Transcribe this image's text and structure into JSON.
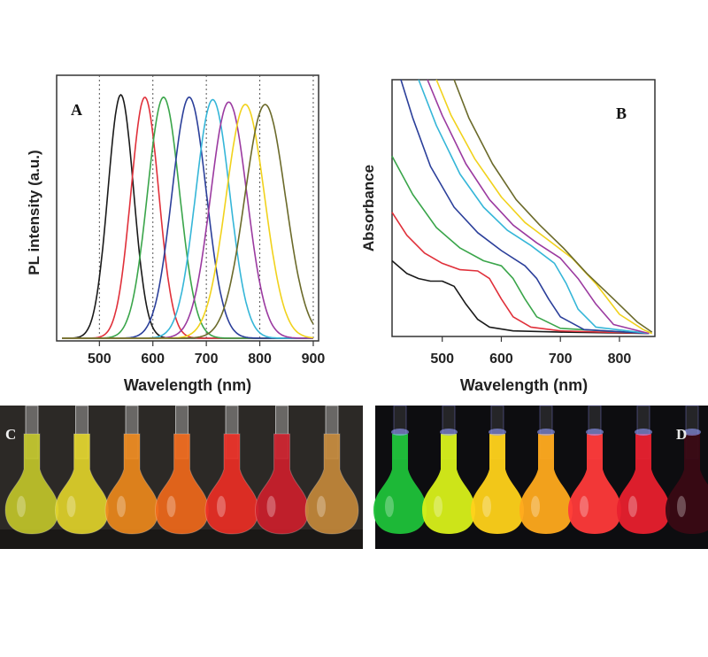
{
  "chart_data": [
    {
      "panel": "A",
      "type": "line",
      "xlabel": "Wavelength (nm)",
      "ylabel": "PL intensity (a.u.)",
      "xlim": [
        420,
        910
      ],
      "ylim": [
        0,
        1.08
      ],
      "xticks": [
        500,
        600,
        700,
        800,
        900
      ],
      "grid": "vertical dotted at ticks",
      "series": [
        {
          "color": "#1a1a1a",
          "peak": 540,
          "width": 24,
          "height": 1.0
        },
        {
          "color": "#e0303a",
          "peak": 585,
          "width": 26,
          "height": 0.99
        },
        {
          "color": "#3aa54a",
          "peak": 620,
          "width": 30,
          "height": 0.99
        },
        {
          "color": "#2b3f9a",
          "peak": 668,
          "width": 32,
          "height": 0.99
        },
        {
          "color": "#35b6d8",
          "peak": 712,
          "width": 32,
          "height": 0.98
        },
        {
          "color": "#9b3aa0",
          "peak": 742,
          "width": 34,
          "height": 0.97
        },
        {
          "color": "#f1d21c",
          "peak": 773,
          "width": 36,
          "height": 0.96
        },
        {
          "color": "#6b6a2a",
          "peak": 810,
          "width": 38,
          "height": 0.96
        }
      ]
    },
    {
      "panel": "B",
      "type": "line",
      "xlabel": "Wavelength (nm)",
      "ylabel": "Absorbance",
      "xlim": [
        415,
        860
      ],
      "ylim": [
        0,
        1.0
      ],
      "xticks": [
        500,
        600,
        700,
        800
      ],
      "series": [
        {
          "color": "#1a1a1a",
          "points": [
            [
              415,
              0.29
            ],
            [
              440,
              0.24
            ],
            [
              460,
              0.22
            ],
            [
              480,
              0.21
            ],
            [
              500,
              0.21
            ],
            [
              520,
              0.19
            ],
            [
              540,
              0.12
            ],
            [
              560,
              0.06
            ],
            [
              580,
              0.03
            ],
            [
              620,
              0.015
            ],
            [
              700,
              0.01
            ],
            [
              850,
              0.005
            ]
          ]
        },
        {
          "color": "#e0303a",
          "points": [
            [
              415,
              0.48
            ],
            [
              440,
              0.39
            ],
            [
              470,
              0.32
            ],
            [
              500,
              0.28
            ],
            [
              530,
              0.255
            ],
            [
              560,
              0.25
            ],
            [
              580,
              0.22
            ],
            [
              600,
              0.14
            ],
            [
              620,
              0.07
            ],
            [
              650,
              0.03
            ],
            [
              700,
              0.015
            ],
            [
              850,
              0.005
            ]
          ]
        },
        {
          "color": "#3aa54a",
          "points": [
            [
              415,
              0.7
            ],
            [
              450,
              0.55
            ],
            [
              490,
              0.42
            ],
            [
              530,
              0.34
            ],
            [
              570,
              0.29
            ],
            [
              600,
              0.27
            ],
            [
              620,
              0.22
            ],
            [
              640,
              0.14
            ],
            [
              660,
              0.07
            ],
            [
              700,
              0.025
            ],
            [
              850,
              0.005
            ]
          ]
        },
        {
          "color": "#2b3f9a",
          "points": [
            [
              430,
              1.0
            ],
            [
              450,
              0.85
            ],
            [
              480,
              0.66
            ],
            [
              520,
              0.5
            ],
            [
              560,
              0.4
            ],
            [
              600,
              0.33
            ],
            [
              640,
              0.27
            ],
            [
              660,
              0.22
            ],
            [
              680,
              0.14
            ],
            [
              700,
              0.07
            ],
            [
              740,
              0.02
            ],
            [
              850,
              0.005
            ]
          ]
        },
        {
          "color": "#35b6d8",
          "points": [
            [
              460,
              1.0
            ],
            [
              490,
              0.82
            ],
            [
              530,
              0.63
            ],
            [
              570,
              0.5
            ],
            [
              610,
              0.41
            ],
            [
              650,
              0.35
            ],
            [
              690,
              0.28
            ],
            [
              710,
              0.2
            ],
            [
              730,
              0.1
            ],
            [
              760,
              0.03
            ],
            [
              850,
              0.005
            ]
          ]
        },
        {
          "color": "#9b3aa0",
          "points": [
            [
              475,
              1.0
            ],
            [
              500,
              0.86
            ],
            [
              540,
              0.67
            ],
            [
              580,
              0.53
            ],
            [
              620,
              0.43
            ],
            [
              660,
              0.36
            ],
            [
              700,
              0.3
            ],
            [
              730,
              0.22
            ],
            [
              760,
              0.12
            ],
            [
              790,
              0.04
            ],
            [
              850,
              0.005
            ]
          ]
        },
        {
          "color": "#f1d21c",
          "points": [
            [
              490,
              1.0
            ],
            [
              515,
              0.86
            ],
            [
              555,
              0.69
            ],
            [
              600,
              0.54
            ],
            [
              640,
              0.44
            ],
            [
              680,
              0.37
            ],
            [
              720,
              0.3
            ],
            [
              760,
              0.2
            ],
            [
              800,
              0.08
            ],
            [
              840,
              0.02
            ],
            [
              855,
              0.005
            ]
          ]
        },
        {
          "color": "#6b6a2a",
          "points": [
            [
              520,
              1.0
            ],
            [
              545,
              0.85
            ],
            [
              585,
              0.67
            ],
            [
              625,
              0.53
            ],
            [
              665,
              0.43
            ],
            [
              705,
              0.34
            ],
            [
              745,
              0.24
            ],
            [
              790,
              0.14
            ],
            [
              830,
              0.05
            ],
            [
              855,
              0.01
            ]
          ]
        }
      ]
    }
  ],
  "photos": {
    "left_label": "C",
    "right_label": "D",
    "left_flasks": [
      "#c4c82a",
      "#e3d52a",
      "#f08a1c",
      "#f36a1a",
      "#ee2e24",
      "#cf1f2c",
      "#c78a3a"
    ],
    "right_flasks": [
      "#1fc23a",
      "#d8f01a",
      "#ffd21a",
      "#ffaa1e",
      "#ff3a3a",
      "#e8202e",
      "#3a0a14"
    ]
  }
}
